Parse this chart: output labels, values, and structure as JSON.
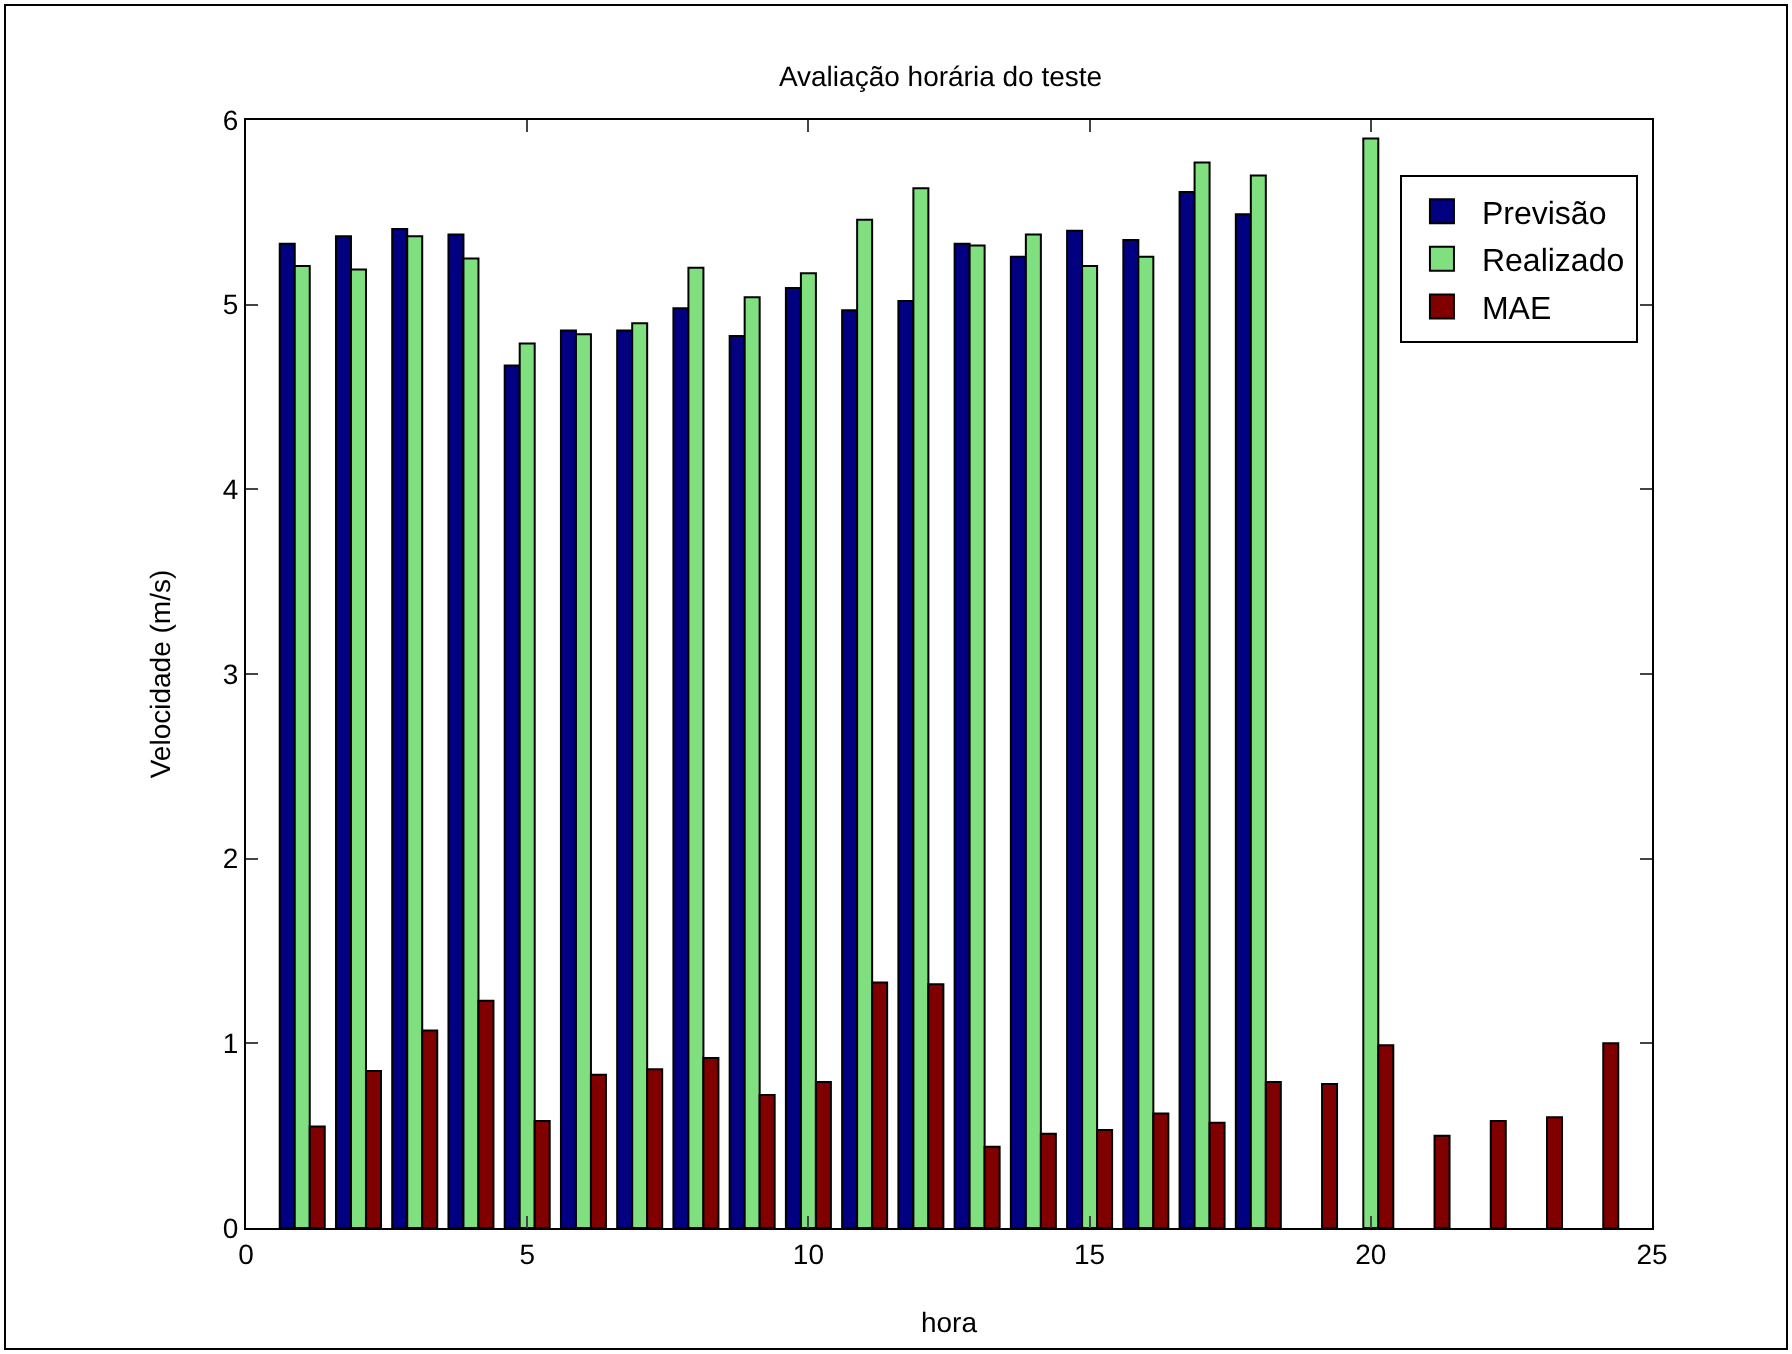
{
  "chart_data": {
    "type": "bar",
    "title": "Avaliação horária do teste",
    "xlabel": "hora",
    "ylabel": "Velocidade (m/s)",
    "x": [
      1,
      2,
      3,
      4,
      5,
      6,
      7,
      8,
      9,
      10,
      11,
      12,
      13,
      14,
      15,
      16,
      17,
      18,
      19,
      20,
      21,
      22,
      23,
      24
    ],
    "series": [
      {
        "name": "Previsão",
        "color": "#000080",
        "values": [
          5.33,
          5.37,
          5.41,
          5.38,
          4.67,
          4.86,
          4.86,
          4.98,
          4.83,
          5.09,
          4.97,
          5.02,
          5.33,
          5.26,
          5.4,
          5.35,
          5.61,
          5.49,
          null,
          null,
          null,
          null,
          null,
          null
        ]
      },
      {
        "name": "Realizado",
        "color": "#80e080",
        "values": [
          5.21,
          5.19,
          5.37,
          5.25,
          4.79,
          4.84,
          4.9,
          5.2,
          5.04,
          5.17,
          5.46,
          5.63,
          5.32,
          5.38,
          5.21,
          5.26,
          5.77,
          5.7,
          null,
          5.9,
          null,
          null,
          null,
          null
        ]
      },
      {
        "name": "MAE",
        "color": "#800000",
        "values": [
          0.55,
          0.85,
          1.07,
          1.23,
          0.58,
          0.83,
          0.86,
          0.92,
          0.72,
          0.79,
          1.33,
          1.32,
          0.44,
          0.51,
          0.53,
          0.62,
          0.57,
          0.79,
          0.78,
          0.99,
          0.5,
          0.58,
          0.6,
          1.0
        ]
      }
    ],
    "xlim": [
      0,
      25
    ],
    "xticks": [
      0,
      5,
      10,
      15,
      20,
      25
    ],
    "ylim": [
      0,
      6
    ],
    "yticks": [
      0,
      1,
      2,
      3,
      4,
      5,
      6
    ],
    "grid": false,
    "legend": "top right"
  }
}
